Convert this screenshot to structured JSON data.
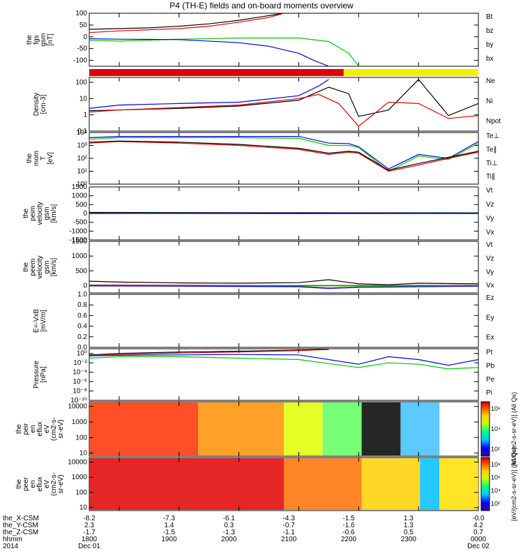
{
  "title": "P4 (TH-E) fields and on-board moments overview",
  "chart_data": [
    {
      "type": "line",
      "id": "fgs",
      "ylabel": [
        "the",
        "fgs",
        "gsm",
        "[nT]"
      ],
      "ylim": [
        -125,
        100
      ],
      "yticks": [
        "100",
        "50",
        "0",
        "-50",
        "-100"
      ],
      "ytick_values": [
        100,
        50,
        0,
        -50,
        -100
      ],
      "legend": [
        {
          "name": "Bt",
          "color": "#000000"
        },
        {
          "name": "bz",
          "color": "#e00000"
        },
        {
          "name": "by",
          "color": "#00c800"
        },
        {
          "name": "bx",
          "color": "#0000e0"
        }
      ],
      "series": [
        {
          "name": "Bt",
          "x": [
            1730,
            1800,
            1830,
            1900,
            1930,
            2000,
            2030,
            2045
          ],
          "y": [
            32,
            35,
            38,
            45,
            55,
            70,
            90,
            100
          ]
        },
        {
          "name": "bz",
          "x": [
            1730,
            1800,
            1830,
            1900,
            1930,
            2000,
            2030,
            2045
          ],
          "y": [
            18,
            25,
            30,
            35,
            45,
            62,
            82,
            100
          ]
        },
        {
          "name": "by",
          "x": [
            1730,
            1800,
            1900,
            2000,
            2100,
            2130,
            2150,
            2200
          ],
          "y": [
            -15,
            -18,
            -10,
            -5,
            -5,
            -20,
            -70,
            -125
          ]
        },
        {
          "name": "bx",
          "x": [
            1730,
            1800,
            1900,
            2000,
            2030,
            2100,
            2115,
            2130
          ],
          "y": [
            -8,
            -10,
            -12,
            -25,
            -40,
            -70,
            -100,
            -125
          ]
        }
      ]
    },
    {
      "type": "bar",
      "id": "mode-bar",
      "segments": [
        {
          "color": "#e00000",
          "start": 1730,
          "end": 2145
        },
        {
          "color": "#f0f000",
          "start": 2145,
          "end": 2400
        }
      ]
    },
    {
      "type": "line",
      "id": "density",
      "log": true,
      "ylabel": [
        "Density",
        "[cm-3]"
      ],
      "yticks": [
        "100",
        "10",
        "1",
        "0.1"
      ],
      "ylim": [
        0.1,
        200
      ],
      "legend": [
        {
          "name": "Ne",
          "color": "#e00000"
        },
        {
          "name": "Ni",
          "color": "#000000"
        },
        {
          "name": "Npot",
          "color": "#0000e0"
        }
      ],
      "series": [
        {
          "name": "Ni",
          "x": [
            1730,
            1800,
            1900,
            2000,
            2100,
            2130,
            2150,
            2200,
            2230,
            2300,
            2330,
            2400
          ],
          "y": [
            1.8,
            2,
            2.5,
            3.5,
            8,
            50,
            20,
            0.8,
            2,
            150,
            0.9,
            5
          ]
        },
        {
          "name": "Ne",
          "x": [
            1730,
            1800,
            1900,
            2000,
            2100,
            2120,
            2140,
            2200,
            2230,
            2300,
            2330,
            2400
          ],
          "y": [
            1.5,
            2,
            2.8,
            4,
            10,
            18,
            5,
            0.2,
            6,
            5,
            0.6,
            0.9
          ]
        },
        {
          "name": "Npot",
          "x": [
            1730,
            1800,
            1900,
            2000,
            2100,
            2120,
            2130
          ],
          "y": [
            2.5,
            4,
            5,
            6,
            15,
            60,
            150
          ]
        }
      ]
    },
    {
      "type": "line",
      "id": "temperature",
      "log": true,
      "ylabel": [
        "the",
        "mom",
        "T",
        "[eV]"
      ],
      "yticks": [
        "10⁴",
        "10³",
        "10²",
        "10¹",
        "10⁰"
      ],
      "ylim": [
        1,
        10000
      ],
      "legend": [
        {
          "name": "Te⊥",
          "color": "#e00000"
        },
        {
          "name": "Te∥",
          "color": "#000000"
        },
        {
          "name": "Ti⊥",
          "color": "#0000e0"
        },
        {
          "name": "Ti∥",
          "color": "#00c800"
        }
      ],
      "series": [
        {
          "name": "Ti⊥",
          "x": [
            1730,
            1800,
            1900,
            2000,
            2100,
            2130,
            2150,
            2200,
            2230,
            2300,
            2330,
            2400
          ],
          "y": [
            4000,
            5000,
            5000,
            5000,
            5000,
            1500,
            1400,
            800,
            15,
            200,
            100,
            2000
          ]
        },
        {
          "name": "Ti∥",
          "x": [
            1730,
            1800,
            1900,
            2000,
            2100,
            2130,
            2150,
            2200,
            2230,
            2300,
            2330,
            2400
          ],
          "y": [
            3000,
            4000,
            4000,
            4000,
            3500,
            1000,
            1000,
            700,
            10,
            150,
            80,
            1500
          ]
        },
        {
          "name": "Te⊥",
          "x": [
            1730,
            1800,
            1900,
            2000,
            2100,
            2130,
            2150,
            2200,
            2230,
            2300,
            2330,
            2400
          ],
          "y": [
            1500,
            2000,
            1500,
            1000,
            500,
            200,
            300,
            250,
            10,
            30,
            100,
            300
          ]
        },
        {
          "name": "Te∥",
          "x": [
            1730,
            1800,
            1900,
            2000,
            2100,
            2130,
            2150,
            2200,
            2230,
            2300,
            2330,
            2400
          ],
          "y": [
            1800,
            2200,
            1800,
            1200,
            600,
            250,
            350,
            300,
            12,
            40,
            120,
            350
          ]
        }
      ]
    },
    {
      "type": "line",
      "id": "peim-velocity",
      "ylabel": [
        "the",
        "peim",
        "velocity",
        "gsm",
        "[km/s]"
      ],
      "ylim": [
        -1500,
        1500
      ],
      "yticks": [
        "1500",
        "1000",
        "500",
        "0",
        "-500",
        "-1000",
        "-1500"
      ],
      "ytick_values": [
        1500,
        1000,
        500,
        0,
        -500,
        -1000,
        -1500
      ],
      "legend": [
        {
          "name": "Vt",
          "color": "#000000"
        },
        {
          "name": "Vz",
          "color": "#e00000"
        },
        {
          "name": "Vy",
          "color": "#00c800"
        },
        {
          "name": "Vx",
          "color": "#0000e0"
        }
      ],
      "series": [
        {
          "name": "Vt",
          "x": [
            1730,
            1900,
            2100,
            2400
          ],
          "y": [
            60,
            50,
            40,
            30
          ]
        },
        {
          "name": "Vz",
          "x": [
            1730,
            1900,
            2100,
            2400
          ],
          "y": [
            10,
            0,
            -10,
            0
          ]
        },
        {
          "name": "Vy",
          "x": [
            1730,
            1900,
            2100,
            2400
          ],
          "y": [
            0,
            10,
            -5,
            0
          ]
        },
        {
          "name": "Vx",
          "x": [
            1730,
            1900,
            2100,
            2400
          ],
          "y": [
            -5,
            0,
            5,
            0
          ]
        }
      ]
    },
    {
      "type": "line",
      "id": "peem-velocity",
      "ylabel": [
        "the",
        "peem",
        "velocity",
        "gsm",
        "[km/s]"
      ],
      "ylim": [
        -250,
        1500
      ],
      "yticks": [
        "1500",
        "1000",
        "500",
        "0"
      ],
      "ytick_values": [
        1500,
        1000,
        500,
        0
      ],
      "legend": [
        {
          "name": "Vt",
          "color": "#000000"
        },
        {
          "name": "Vz",
          "color": "#e00000"
        },
        {
          "name": "Vy",
          "color": "#00c800"
        },
        {
          "name": "Vx",
          "color": "#0000e0"
        }
      ],
      "series": [
        {
          "name": "Vt",
          "x": [
            1730,
            1800,
            1900,
            2000,
            2100,
            2130,
            2200,
            2230,
            2300,
            2400
          ],
          "y": [
            150,
            120,
            90,
            80,
            100,
            200,
            60,
            30,
            80,
            60
          ]
        },
        {
          "name": "Vz",
          "x": [
            1730,
            1900,
            2100,
            2400
          ],
          "y": [
            20,
            10,
            0,
            10
          ]
        },
        {
          "name": "Vy",
          "x": [
            1730,
            1900,
            2100,
            2130,
            2200,
            2400
          ],
          "y": [
            0,
            -10,
            -20,
            -60,
            -30,
            0
          ]
        },
        {
          "name": "Vx",
          "x": [
            1730,
            1900,
            2100,
            2130,
            2200,
            2400
          ],
          "y": [
            -10,
            -20,
            -40,
            -100,
            -60,
            -20
          ]
        }
      ]
    },
    {
      "type": "line",
      "id": "efield",
      "ylabel": [
        "E=-VxB",
        "[mV/m]"
      ],
      "ylim": [
        0,
        1
      ],
      "yticks": [
        "1.0",
        "0.8",
        "0.6",
        "0.4",
        "0.2",
        "0.0"
      ],
      "ytick_values": [
        1,
        0.8,
        0.6,
        0.4,
        0.2,
        0
      ],
      "legend": [
        {
          "name": "Ez",
          "color": "#e00000"
        },
        {
          "name": "Ey",
          "color": "#00c800"
        },
        {
          "name": "Ex",
          "color": "#0000e0"
        }
      ],
      "series": []
    },
    {
      "type": "line",
      "id": "pressure",
      "log": true,
      "ylabel": [
        "Pressure",
        "[nPa]"
      ],
      "yticks": [
        "10⁰",
        "10⁻²",
        "10⁻⁴",
        "10⁻⁶",
        "10⁻⁸",
        "10⁻¹⁰"
      ],
      "ylim": [
        1e-10,
        10
      ],
      "legend": [
        {
          "name": "Pt",
          "color": "#000000"
        },
        {
          "name": "Pb",
          "color": "#e00000"
        },
        {
          "name": "Pe",
          "color": "#00c800"
        },
        {
          "name": "Pi",
          "color": "#0000e0"
        }
      ],
      "series": [
        {
          "name": "Pt",
          "x": [
            1730,
            1800,
            1900,
            2000,
            2100,
            2130
          ],
          "y": [
            0.5,
            1,
            2,
            3,
            5,
            8
          ]
        },
        {
          "name": "Pb",
          "x": [
            1730,
            1800,
            1900,
            2000,
            2100,
            2130
          ],
          "y": [
            0.3,
            0.6,
            1.2,
            2,
            4,
            7
          ]
        },
        {
          "name": "Pi",
          "x": [
            1730,
            1800,
            1900,
            2000,
            2100,
            2200,
            2230,
            2300,
            2330,
            2400
          ],
          "y": [
            0.3,
            0.4,
            0.5,
            0.6,
            0.5,
            0.005,
            0.2,
            0.05,
            0.003,
            0.05
          ]
        },
        {
          "name": "Pe",
          "x": [
            1730,
            1800,
            1900,
            2000,
            2100,
            2200,
            2230,
            2300,
            2330,
            2400
          ],
          "y": [
            0.1,
            0.2,
            0.2,
            0.1,
            0.05,
            0.001,
            0.01,
            0.005,
            0.0005,
            0.001
          ]
        }
      ]
    },
    {
      "type": "heatmap",
      "id": "peir",
      "ylabel": [
        "the",
        "peir",
        "en",
        "eflux",
        "eV",
        "(cm2-s-",
        "sr-eV)"
      ],
      "yticks": [
        "10000",
        "1000",
        "100",
        "10"
      ],
      "colorbar": {
        "label": "[eV/(cm2-s-sr-eV)] (All Qs)",
        "ticks": [
          "10⁶",
          "10⁴",
          "10²"
        ]
      }
    },
    {
      "type": "heatmap",
      "id": "peer",
      "ylabel": [
        "the",
        "peer",
        "en",
        "eflux",
        "eV",
        "(cm2-s-",
        "sr-eV)"
      ],
      "yticks": [
        "10000",
        "1000",
        "100",
        "10"
      ],
      "colorbar": {
        "label": "[eV/(cm2-s-sr-eV)] (All Qs)",
        "ticks": [
          "10⁸",
          "10⁶",
          "10⁴",
          "10²"
        ]
      }
    }
  ],
  "xaxis": {
    "range": [
      1730,
      2400
    ],
    "ticks_major": [
      1800,
      1900,
      2000,
      2100,
      2200,
      2300,
      2400
    ],
    "row_labels": [
      "the_X-CSM",
      "the_Y-CSM",
      "the_Z-CSM",
      "hhmm",
      "2014"
    ],
    "columns": [
      {
        "x": 1730,
        "values": [
          "-8.2",
          "2.3",
          "-1.7",
          "1800",
          "Dec 01"
        ]
      },
      {
        "x": 1850,
        "values": [
          "-7.3",
          "1.4",
          "-1.5",
          "1900",
          ""
        ]
      },
      {
        "x": 1950,
        "values": [
          "-6.1",
          "0.3",
          "-1.3",
          "2000",
          ""
        ]
      },
      {
        "x": 2050,
        "values": [
          "-4.3",
          "-0.7",
          "-1.1",
          "2100",
          ""
        ]
      },
      {
        "x": 2150,
        "values": [
          "-1.5",
          "-1.6",
          "-0.6",
          "2200",
          ""
        ]
      },
      {
        "x": 2250,
        "values": [
          "1.3",
          "1.3",
          "0.5",
          "2300",
          ""
        ]
      },
      {
        "x": 2400,
        "values": [
          "-0.0",
          "4.2",
          "0.7",
          "0000",
          "Dec 02"
        ]
      }
    ]
  }
}
